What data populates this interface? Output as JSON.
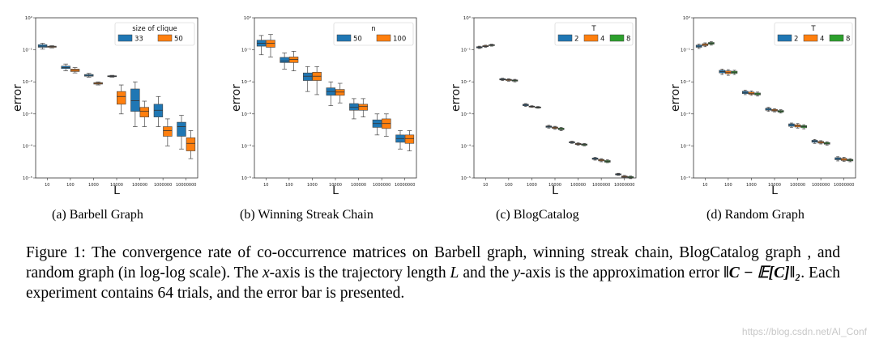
{
  "chart_data": [
    {
      "type": "boxplot",
      "subcaption": "(a) Barbell Graph",
      "xlabel": "L",
      "ylabel": "error",
      "yscale": "log",
      "ylim": [
        1e-05,
        1
      ],
      "ytick_labels": [
        "10^-5",
        "10^-4",
        "10^-3",
        "10^-2",
        "10^-1",
        "10^0"
      ],
      "categories": [
        "10",
        "100",
        "1000",
        "10000",
        "100000",
        "1000000",
        "10000000"
      ],
      "legend": {
        "title": "size of clique",
        "position": "top-right",
        "entries": [
          {
            "label": "33",
            "color": "#1f77b4"
          },
          {
            "label": "50",
            "color": "#ff7f0e"
          }
        ]
      },
      "series": [
        {
          "name": "33",
          "color": "#1f77b4",
          "medians": [
            0.13,
            0.028,
            0.016,
            0.015,
            0.0026,
            0.0013,
            0.0004
          ],
          "q1": [
            0.12,
            0.026,
            0.015,
            0.0145,
            0.0012,
            0.0008,
            0.0002
          ],
          "q3": [
            0.145,
            0.031,
            0.017,
            0.0155,
            0.006,
            0.002,
            0.00055
          ],
          "whisker_low": [
            0.105,
            0.022,
            0.014,
            0.014,
            0.0004,
            0.0004,
            8e-05
          ],
          "whisker_high": [
            0.16,
            0.036,
            0.0185,
            0.016,
            0.01,
            0.0035,
            0.0009
          ]
        },
        {
          "name": "50",
          "color": "#ff7f0e",
          "medians": [
            0.125,
            0.023,
            0.009,
            0.0035,
            0.0012,
            0.0003,
            0.00012
          ],
          "q1": [
            0.12,
            0.021,
            0.0085,
            0.002,
            0.0008,
            0.0002,
            7e-05
          ],
          "q3": [
            0.13,
            0.025,
            0.0095,
            0.005,
            0.0016,
            0.0004,
            0.00018
          ],
          "whisker_low": [
            0.115,
            0.019,
            0.008,
            0.001,
            0.0004,
            0.0001,
            4e-05
          ],
          "whisker_high": [
            0.135,
            0.028,
            0.01,
            0.008,
            0.0025,
            0.0007,
            0.0003
          ]
        }
      ]
    },
    {
      "type": "boxplot",
      "subcaption": "(b) Winning Streak Chain",
      "xlabel": "L",
      "ylabel": "error",
      "yscale": "log",
      "ylim": [
        1e-05,
        1
      ],
      "ytick_labels": [
        "10^-5",
        "10^-4",
        "10^-3",
        "10^-2",
        "10^-1",
        "10^0"
      ],
      "categories": [
        "10",
        "100",
        "1000",
        "10000",
        "100000",
        "1000000",
        "10000000"
      ],
      "legend": {
        "title": "n",
        "position": "top-right",
        "entries": [
          {
            "label": "50",
            "color": "#1f77b4"
          },
          {
            "label": "100",
            "color": "#ff7f0e"
          }
        ]
      },
      "series": [
        {
          "name": "50",
          "color": "#1f77b4",
          "medians": [
            0.16,
            0.045,
            0.015,
            0.005,
            0.0016,
            0.0005,
            0.00017
          ],
          "q1": [
            0.13,
            0.04,
            0.011,
            0.0038,
            0.0013,
            0.00038,
            0.00013
          ],
          "q3": [
            0.2,
            0.058,
            0.019,
            0.0065,
            0.0021,
            0.00065,
            0.00022
          ],
          "whisker_low": [
            0.07,
            0.025,
            0.005,
            0.0018,
            0.0007,
            0.00022,
            8e-05
          ],
          "whisker_high": [
            0.28,
            0.08,
            0.03,
            0.01,
            0.003,
            0.001,
            0.0003
          ]
        },
        {
          "name": "100",
          "color": "#ff7f0e",
          "medians": [
            0.16,
            0.05,
            0.015,
            0.0048,
            0.0017,
            0.0005,
            0.00017
          ],
          "q1": [
            0.12,
            0.04,
            0.011,
            0.0038,
            0.0013,
            0.00035,
            0.00012
          ],
          "q3": [
            0.2,
            0.06,
            0.02,
            0.0058,
            0.002,
            0.0007,
            0.00022
          ],
          "whisker_low": [
            0.06,
            0.022,
            0.004,
            0.0022,
            0.0008,
            0.0002,
            7e-05
          ],
          "whisker_high": [
            0.3,
            0.09,
            0.03,
            0.009,
            0.003,
            0.001,
            0.0003
          ]
        }
      ]
    },
    {
      "type": "boxplot",
      "subcaption": "(c) BlogCatalog",
      "xlabel": "L",
      "ylabel": "error",
      "yscale": "log",
      "ylim": [
        1e-05,
        1
      ],
      "ytick_labels": [
        "10^-5",
        "10^-4",
        "10^-3",
        "10^-2",
        "10^-1",
        "10^0"
      ],
      "categories": [
        "10",
        "100",
        "1000",
        "10000",
        "100000",
        "1000000",
        "10000000"
      ],
      "legend": {
        "title": "T",
        "position": "top-right",
        "entries": [
          {
            "label": "2",
            "color": "#1f77b4"
          },
          {
            "label": "4",
            "color": "#ff7f0e"
          },
          {
            "label": "8",
            "color": "#2ca02c"
          }
        ]
      },
      "series": [
        {
          "name": "2",
          "color": "#1f77b4",
          "medians": [
            0.12,
            0.012,
            0.0019,
            0.0004,
            0.00013,
            4e-05,
            1.3e-05
          ],
          "q1": [
            0.115,
            0.0115,
            0.0018,
            0.00038,
            0.000125,
            3.8e-05,
            1.25e-05
          ],
          "q3": [
            0.125,
            0.0125,
            0.002,
            0.00042,
            0.000135,
            4.2e-05,
            1.35e-05
          ],
          "whisker_low": [
            0.11,
            0.011,
            0.0017,
            0.00036,
            0.00012,
            3.6e-05,
            1.2e-05
          ],
          "whisker_high": [
            0.13,
            0.013,
            0.0021,
            0.00044,
            0.00014,
            4.4e-05,
            1.4e-05
          ]
        },
        {
          "name": "4",
          "color": "#ff7f0e",
          "medians": [
            0.13,
            0.0115,
            0.0017,
            0.00037,
            0.000115,
            3.6e-05,
            1.1e-05
          ],
          "q1": [
            0.125,
            0.011,
            0.00165,
            0.00035,
            0.00011,
            3.4e-05,
            1.05e-05
          ],
          "q3": [
            0.135,
            0.012,
            0.00175,
            0.00039,
            0.00012,
            3.8e-05,
            1.15e-05
          ],
          "whisker_low": [
            0.12,
            0.0105,
            0.0016,
            0.00033,
            0.000105,
            3.2e-05,
            1e-05
          ],
          "whisker_high": [
            0.14,
            0.0125,
            0.0018,
            0.00041,
            0.000125,
            4e-05,
            1.2e-05
          ]
        },
        {
          "name": "8",
          "color": "#2ca02c",
          "medians": [
            0.14,
            0.011,
            0.0016,
            0.00034,
            0.00011,
            3.3e-05,
            1.05e-05
          ],
          "q1": [
            0.135,
            0.0105,
            0.00155,
            0.00032,
            0.000105,
            3.1e-05,
            1e-05
          ],
          "q3": [
            0.145,
            0.0115,
            0.00165,
            0.00036,
            0.000115,
            3.5e-05,
            1.1e-05
          ],
          "whisker_low": [
            0.13,
            0.01,
            0.0015,
            0.0003,
            0.0001,
            3e-05,
            9.5e-06
          ],
          "whisker_high": [
            0.15,
            0.012,
            0.0017,
            0.00038,
            0.00012,
            3.7e-05,
            1.15e-05
          ]
        }
      ]
    },
    {
      "type": "boxplot",
      "subcaption": "(d) Random Graph",
      "xlabel": "L",
      "ylabel": "error",
      "yscale": "log",
      "ylim": [
        1e-05,
        1
      ],
      "ytick_labels": [
        "10^-5",
        "10^-4",
        "10^-3",
        "10^-2",
        "10^-1",
        "10^0"
      ],
      "categories": [
        "10",
        "100",
        "1000",
        "10000",
        "100000",
        "1000000",
        "10000000"
      ],
      "legend": {
        "title": "T",
        "position": "top-right",
        "entries": [
          {
            "label": "2",
            "color": "#1f77b4"
          },
          {
            "label": "4",
            "color": "#ff7f0e"
          },
          {
            "label": "8",
            "color": "#2ca02c"
          }
        ]
      },
      "series": [
        {
          "name": "2",
          "color": "#1f77b4",
          "medians": [
            0.13,
            0.021,
            0.0047,
            0.0014,
            0.00045,
            0.00014,
            4e-05
          ],
          "q1": [
            0.12,
            0.019,
            0.0043,
            0.0013,
            0.00041,
            0.00013,
            3.7e-05
          ],
          "q3": [
            0.14,
            0.023,
            0.0051,
            0.0015,
            0.00049,
            0.00015,
            4.3e-05
          ],
          "whisker_low": [
            0.11,
            0.017,
            0.004,
            0.0012,
            0.00038,
            0.00012,
            3.4e-05
          ],
          "whisker_high": [
            0.15,
            0.025,
            0.0055,
            0.0016,
            0.00052,
            0.00016,
            4.6e-05
          ]
        },
        {
          "name": "4",
          "color": "#ff7f0e",
          "medians": [
            0.145,
            0.02,
            0.0044,
            0.0013,
            0.00042,
            0.00013,
            3.8e-05
          ],
          "q1": [
            0.135,
            0.018,
            0.0041,
            0.00122,
            0.00039,
            0.000122,
            3.5e-05
          ],
          "q3": [
            0.155,
            0.022,
            0.0048,
            0.00138,
            0.00046,
            0.000138,
            4.1e-05
          ],
          "whisker_low": [
            0.125,
            0.016,
            0.0038,
            0.00115,
            0.00036,
            0.000115,
            3.3e-05
          ],
          "whisker_high": [
            0.165,
            0.024,
            0.0052,
            0.00146,
            0.0005,
            0.000146,
            4.4e-05
          ]
        },
        {
          "name": "8",
          "color": "#2ca02c",
          "medians": [
            0.16,
            0.02,
            0.0042,
            0.0012,
            0.0004,
            0.00012,
            3.6e-05
          ],
          "q1": [
            0.15,
            0.0185,
            0.0039,
            0.00113,
            0.00037,
            0.000113,
            3.4e-05
          ],
          "q3": [
            0.17,
            0.0215,
            0.0045,
            0.00128,
            0.00043,
            0.000128,
            3.8e-05
          ],
          "whisker_low": [
            0.14,
            0.017,
            0.0036,
            0.00106,
            0.00034,
            0.000106,
            3.2e-05
          ],
          "whisker_high": [
            0.18,
            0.023,
            0.0048,
            0.00135,
            0.00046,
            0.000135,
            4e-05
          ]
        }
      ]
    }
  ],
  "caption": {
    "label": "Figure 1:",
    "part1": "The convergence rate of co-occurrence matrices on Barbell graph, winning streak chain, BlogCatalog graph , and random graph (in log-log scale). The",
    "x_symbol": "x",
    "part2": "-axis is the trajectory length",
    "L_symbol": "L",
    "part3": "and the",
    "y_symbol": "y",
    "part4": "-axis is the approximation error",
    "formula": "‖C − 𝔼[C]‖₂",
    "part5": ". Each experiment contains 64 trials, and the error bar is presented."
  },
  "watermark": "https://blog.csdn.net/AI_Conf"
}
